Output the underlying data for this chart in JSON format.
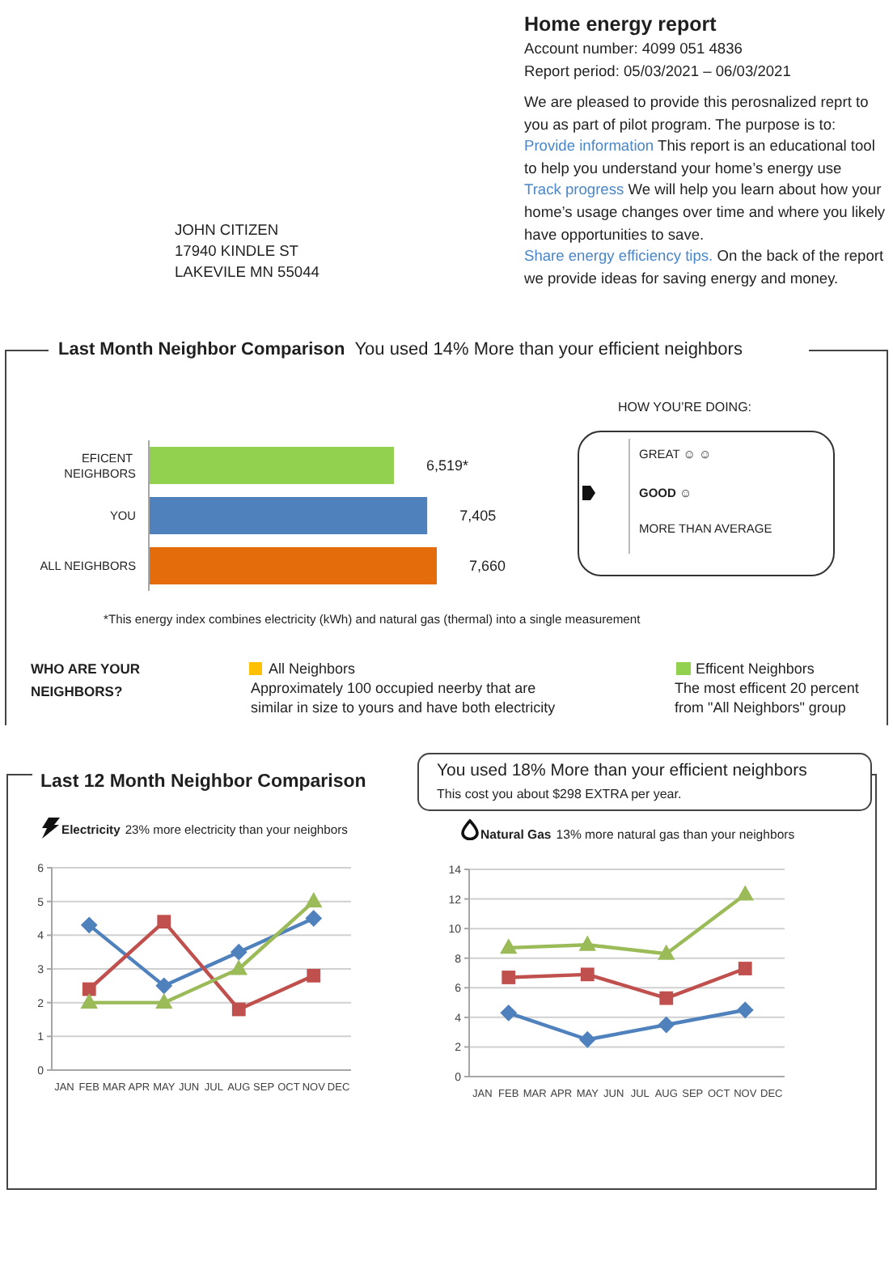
{
  "chart_data": [
    {
      "type": "other",
      "title": "Home energy report",
      "annotations": [
        "Account number: 4099 051 4836",
        "Report period: 05/03/2021 – 06/03/2021",
        "We are pleased to provide this perosnalized reprt to you as part of pilot program. The purpose is to:",
        "Provide information",
        "This report is an educational tool to help you understand your home’s energy use",
        "Track progress",
        "We will help you learn about how your home’s usage changes over time and where you likely have opportunities to save.",
        "Share energy efficiency tips.",
        "On the back of the report we provide ideas for saving energy and money.",
        "JOHN CITIZEN",
        "17940 KINDLE ST",
        "LAKEVILE MN 55044"
      ]
    },
    {
      "type": "bar",
      "orientation": "horizontal",
      "title": "Last Month Neighbor Comparison",
      "subtitle": "You used 14% More than your efficient neighbors",
      "categories": [
        "EFICENT NEIGHBORS",
        "YOU",
        "ALL NEIGHBORS"
      ],
      "values": [
        6519,
        7405,
        7660
      ],
      "colors": [
        "#92d050",
        "#4f81bd",
        "#e46c0a"
      ],
      "value_labels": [
        "6,519*",
        "7,405",
        "7,660"
      ],
      "tick_labels": "y",
      "annotations": [
        "HOW YOU’RE DOING:",
        "GREAT ☺ ☺",
        "GOOD ☺",
        "MORE THAN AVERAGE",
        "*This energy index combines electricity (kWh) and natural gas (thermal) into a single measurement",
        "WHO ARE YOUR NEIGHBORS?",
        "All Neighbors",
        "Approximately 100 occupied neerby that are similar in size to yours and have both electricity",
        "Efficent Neighbors",
        "The most efficent 20 percent from \"All Neighbors\" group"
      ]
    },
    {
      "type": "line",
      "title": "Electricity",
      "subtitle": "23% more electricity than your neighbors",
      "categories": [
        "JAN",
        "FEB",
        "MAR",
        "APR",
        "MAY",
        "JUN",
        "JUL",
        "AUG",
        "SEP",
        "OCT",
        "NOV",
        "DEC"
      ],
      "series": [
        {
          "color": "#4f81bd",
          "marker": "diamond",
          "values": [
            null,
            4.3,
            null,
            null,
            2.5,
            null,
            null,
            3.5,
            null,
            null,
            4.5,
            null
          ]
        },
        {
          "color": "#c0504d",
          "marker": "square",
          "values": [
            null,
            2.4,
            null,
            null,
            4.4,
            null,
            null,
            1.8,
            null,
            null,
            2.8,
            null
          ]
        },
        {
          "color": "#9bbb59",
          "marker": "triangle",
          "values": [
            null,
            2,
            null,
            null,
            2,
            null,
            null,
            3,
            null,
            null,
            5,
            null
          ]
        }
      ],
      "ylim": [
        0,
        6
      ],
      "yticks": [
        0,
        1,
        2,
        3,
        4,
        5,
        6
      ],
      "grid": "y",
      "annotations": [
        "Last 12 Month Neighbor Comparison"
      ]
    },
    {
      "type": "line",
      "title": "Natural Gas",
      "subtitle": "13% more natural gas than your neighbors",
      "categories": [
        "JAN",
        "FEB",
        "MAR",
        "APR",
        "MAY",
        "JUN",
        "JUL",
        "AUG",
        "SEP",
        "OCT",
        "NOV",
        "DEC"
      ],
      "series": [
        {
          "color": "#9bbb59",
          "marker": "triangle",
          "values": [
            null,
            8.7,
            null,
            null,
            8.9,
            null,
            null,
            8.3,
            null,
            null,
            12.3,
            null
          ]
        },
        {
          "color": "#c0504d",
          "marker": "square",
          "values": [
            null,
            6.7,
            null,
            null,
            6.9,
            null,
            null,
            5.3,
            null,
            null,
            7.3,
            null
          ]
        },
        {
          "color": "#4f81bd",
          "marker": "diamond",
          "values": [
            null,
            4.3,
            null,
            null,
            2.5,
            null,
            null,
            3.5,
            null,
            null,
            4.5,
            null
          ]
        }
      ],
      "ylim": [
        0,
        14
      ],
      "yticks": [
        0,
        2,
        4,
        6,
        8,
        10,
        12,
        14
      ],
      "grid": "y",
      "annotations": [
        "You used 18% More than your efficient neighbors",
        "This cost you about $298 EXTRA per year."
      ]
    }
  ]
}
